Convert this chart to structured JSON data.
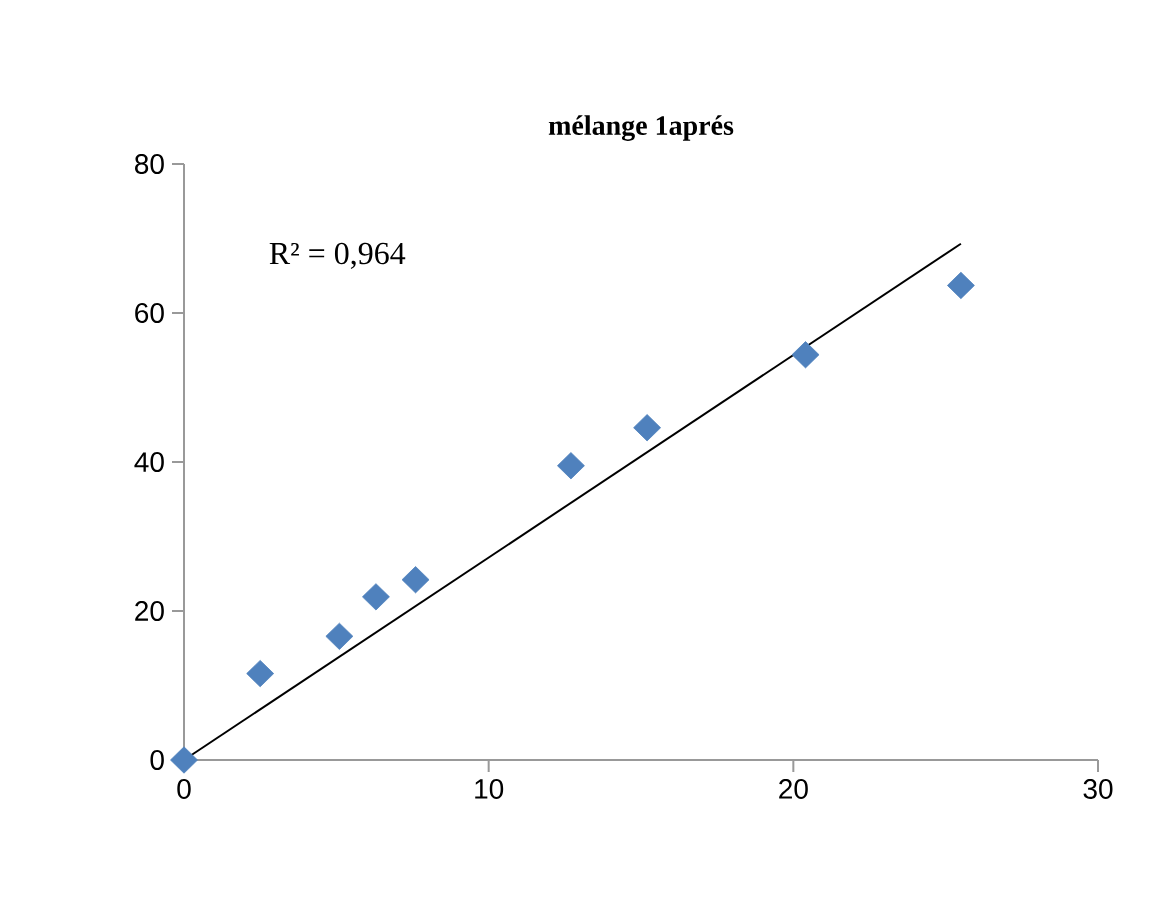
{
  "chart_data": {
    "type": "scatter",
    "title": "mélange 1aprés",
    "annotations": [
      "R² = 0,964"
    ],
    "xlim": [
      0,
      30
    ],
    "xticks": [
      0,
      10,
      20,
      30
    ],
    "ylim": [
      0,
      80
    ],
    "yticks": [
      0,
      20,
      40,
      60,
      80
    ],
    "grid": false,
    "marker": "diamond",
    "series": [
      {
        "color": "#4f81bd",
        "x": [
          0,
          2.5,
          5.1,
          6.3,
          7.6,
          12.7,
          15.2,
          20.4,
          25.5
        ],
        "values": [
          0,
          11.6,
          16.6,
          21.9,
          24.2,
          39.5,
          44.6,
          54.4,
          63.7
        ]
      },
      {
        "type": "line",
        "color": "#000000",
        "marker": "none",
        "x": [
          0,
          25.5
        ],
        "values": [
          0,
          69.3
        ]
      }
    ]
  }
}
